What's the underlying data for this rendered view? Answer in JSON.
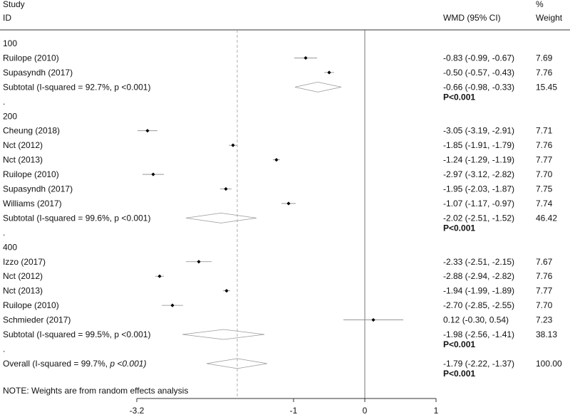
{
  "chart_data": {
    "type": "forest",
    "headers": {
      "study_top": "Study",
      "study_bottom": "ID",
      "estimate": "WMD (95% CI)",
      "weight_top": "%",
      "weight_bottom": "Weight"
    },
    "rows": [
      {
        "kind": "group",
        "label": "100"
      },
      {
        "kind": "study",
        "label": "Ruilope (2010)",
        "est": -0.83,
        "lo": -0.99,
        "hi": -0.67,
        "ci_text": "-0.83 (-0.99, -0.67)",
        "weight": "7.69"
      },
      {
        "kind": "study",
        "label": "Supasyndh (2017)",
        "est": -0.5,
        "lo": -0.57,
        "hi": -0.43,
        "ci_text": "-0.50 (-0.57, -0.43)",
        "weight": "7.76"
      },
      {
        "kind": "subtotal",
        "label": "Subtotal  (I-squared = 92.7%, p <0.001)",
        "est": -0.66,
        "lo": -0.98,
        "hi": -0.33,
        "ci_text": "-0.66 (-0.98, -0.33)",
        "weight": "15.45",
        "p_text": "P<0.001"
      },
      {
        "kind": "dot",
        "label": "."
      },
      {
        "kind": "group",
        "label": "200"
      },
      {
        "kind": "study",
        "label": "Cheung (2018)",
        "est": -3.05,
        "lo": -3.19,
        "hi": -2.91,
        "ci_text": "-3.05 (-3.19, -2.91)",
        "weight": "7.71"
      },
      {
        "kind": "study",
        "label": "Nct  (2012)",
        "est": -1.85,
        "lo": -1.91,
        "hi": -1.79,
        "ci_text": "-1.85 (-1.91, -1.79)",
        "weight": "7.76"
      },
      {
        "kind": "study",
        "label": "Nct  (2013)",
        "est": -1.24,
        "lo": -1.29,
        "hi": -1.19,
        "ci_text": "-1.24 (-1.29, -1.19)",
        "weight": "7.77"
      },
      {
        "kind": "study",
        "label": "Ruilope  (2010)",
        "est": -2.97,
        "lo": -3.12,
        "hi": -2.82,
        "ci_text": "-2.97 (-3.12, -2.82)",
        "weight": "7.70"
      },
      {
        "kind": "study",
        "label": "Supasyndh (2017)",
        "est": -1.95,
        "lo": -2.03,
        "hi": -1.87,
        "ci_text": "-1.95 (-2.03, -1.87)",
        "weight": "7.75"
      },
      {
        "kind": "study",
        "label": "Williams  (2017)",
        "est": -1.07,
        "lo": -1.17,
        "hi": -0.97,
        "ci_text": "-1.07 (-1.17, -0.97)",
        "weight": "7.74"
      },
      {
        "kind": "subtotal",
        "label": "Subtotal  (I-squared = 99.6%, p <0.001)",
        "est": -2.02,
        "lo": -2.51,
        "hi": -1.52,
        "ci_text": "-2.02 (-2.51, -1.52)",
        "weight": "46.42",
        "p_text": "P<0.001"
      },
      {
        "kind": "dot",
        "label": "."
      },
      {
        "kind": "group",
        "label": "400"
      },
      {
        "kind": "study",
        "label": "Izzo  (2017)",
        "est": -2.33,
        "lo": -2.51,
        "hi": -2.15,
        "ci_text": "-2.33 (-2.51, -2.15)",
        "weight": "7.67"
      },
      {
        "kind": "study",
        "label": "Nct  (2012)",
        "est": -2.88,
        "lo": -2.94,
        "hi": -2.82,
        "ci_text": "-2.88 (-2.94, -2.82)",
        "weight": "7.76"
      },
      {
        "kind": "study",
        "label": "Nct  (2013)",
        "est": -1.94,
        "lo": -1.99,
        "hi": -1.89,
        "ci_text": "-1.94 (-1.99, -1.89)",
        "weight": "7.77"
      },
      {
        "kind": "study",
        "label": "Ruilope  (2010)",
        "est": -2.7,
        "lo": -2.85,
        "hi": -2.55,
        "ci_text": "-2.70 (-2.85, -2.55)",
        "weight": "7.70"
      },
      {
        "kind": "study",
        "label": "Schmieder (2017)",
        "est": 0.12,
        "lo": -0.3,
        "hi": 0.54,
        "ci_text": "0.12 (-0.30, 0.54)",
        "weight": "7.23"
      },
      {
        "kind": "subtotal",
        "label": "Subtotal  (I-squared = 99.5%, p <0.001)",
        "est": -1.98,
        "lo": -2.56,
        "hi": -1.41,
        "ci_text": "-1.98 (-2.56, -1.41)",
        "weight": "38.13",
        "p_text": "P<0.001"
      },
      {
        "kind": "dot",
        "label": "."
      },
      {
        "kind": "overall",
        "label_main": "Overall  (I-squared = 99.7%, ",
        "label_ital": "p <0.001)",
        "est": -1.79,
        "lo": -2.22,
        "hi": -1.37,
        "ci_text": "-1.79 (-2.22, -1.37)",
        "weight": "100.00",
        "p_text": "P<0.001"
      }
    ],
    "note": "NOTE: Weights are from random effects analysis",
    "x_ticks": [
      {
        "value": -3.2,
        "label": "-3.2"
      },
      {
        "value": -1,
        "label": "-1"
      },
      {
        "value": 0,
        "label": "0"
      },
      {
        "value": 1,
        "label": "1"
      }
    ],
    "null_line": 0,
    "overall_line": -1.79,
    "xlim": [
      -3.5,
      1.1
    ]
  }
}
